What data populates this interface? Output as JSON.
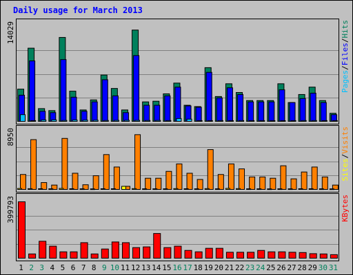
{
  "chart_data": {
    "type": "bar",
    "title": "Daily usage for March 2013",
    "categories": [
      "1",
      "2",
      "3",
      "4",
      "5",
      "6",
      "7",
      "8",
      "9",
      "10",
      "11",
      "12",
      "13",
      "14",
      "15",
      "16",
      "17",
      "18",
      "19",
      "20",
      "21",
      "22",
      "23",
      "24",
      "25",
      "26",
      "27",
      "28",
      "29",
      "30",
      "31"
    ],
    "weekend_days": [
      "2",
      "3",
      "9",
      "10",
      "16",
      "17",
      "23",
      "24",
      "30",
      "31"
    ],
    "panels": [
      {
        "name": "hits-files-pages",
        "ymax_label": "14029",
        "ymax": 14029,
        "legend": [
          "Pages",
          "/",
          "Files",
          "/",
          "Hits"
        ],
        "series": [
          {
            "name": "Hits",
            "color": "#00805C",
            "values": [
              4800,
              10900,
              1900,
              1600,
              12500,
              4500,
              1700,
              3200,
              6900,
              4900,
              1700,
              13600,
              2900,
              3000,
              4100,
              5700,
              2400,
              2200,
              8000,
              3700,
              5600,
              4300,
              3100,
              3100,
              3100,
              5600,
              2800,
              4000,
              5100,
              3100,
              1200
            ]
          },
          {
            "name": "Files",
            "color": "#0000FF",
            "values": [
              3900,
              9000,
              1500,
              1300,
              9200,
              3600,
              1500,
              2900,
              6200,
              3800,
              1300,
              9800,
              2400,
              2400,
              3800,
              5100,
              2300,
              2100,
              7300,
              3500,
              5000,
              4000,
              2900,
              2900,
              2900,
              4700,
              2800,
              3400,
              4200,
              2800,
              1000
            ]
          },
          {
            "name": "Pages",
            "color": "#00C0FF",
            "values": [
              1000,
              110,
              200,
              220,
              140,
              200,
              180,
              170,
              130,
              150,
              160,
              150,
              130,
              140,
              120,
              420,
              330,
              110,
              110,
              120,
              110,
              120,
              110,
              110,
              100,
              100,
              110,
              120,
              120,
              110,
              110
            ]
          }
        ]
      },
      {
        "name": "visits-sites",
        "ymax_label": "8950",
        "ymax": 8950,
        "legend": [
          "Sites",
          "/",
          "Visits"
        ],
        "series": [
          {
            "name": "Visits",
            "color": "#FF8000",
            "values": [
              2400,
              8000,
              1100,
              700,
              8200,
              2600,
              750,
              2200,
              5600,
              3600,
              500,
              8800,
              1800,
              1800,
              2900,
              4100,
              2600,
              1600,
              6400,
              2400,
              4100,
              3300,
              2000,
              2000,
              1800,
              3800,
              1700,
              2800,
              3600,
              2000,
              700
            ]
          },
          {
            "name": "Sites",
            "color": "#FFFF00",
            "values": [
              150,
              120,
              110,
              100,
              160,
              110,
              100,
              90,
              110,
              110,
              500,
              130,
              100,
              100,
              100,
              130,
              110,
              100,
              130,
              100,
              160,
              130,
              100,
              100,
              90,
              100,
              100,
              110,
              110,
              100,
              90
            ]
          }
        ]
      },
      {
        "name": "kbytes",
        "ymax_label": "399793",
        "ymax": 399793,
        "legend": [
          "KBytes"
        ],
        "series": [
          {
            "name": "KBytes",
            "color": "#FF0000",
            "values": [
              399793,
              30000,
              120000,
              85000,
              45000,
              45000,
              110000,
              30000,
              65000,
              115000,
              110000,
              75000,
              80000,
              175000,
              75000,
              85000,
              55000,
              45000,
              70000,
              70000,
              42000,
              42000,
              42000,
              55000,
              45000,
              45000,
              42000,
              40000,
              32000,
              30000,
              25000
            ]
          }
        ]
      }
    ]
  },
  "colors": {
    "background": "#C0C0C0",
    "title": "#0000FF",
    "weekday_label": "#000000",
    "weekend_label": "#00805C"
  }
}
